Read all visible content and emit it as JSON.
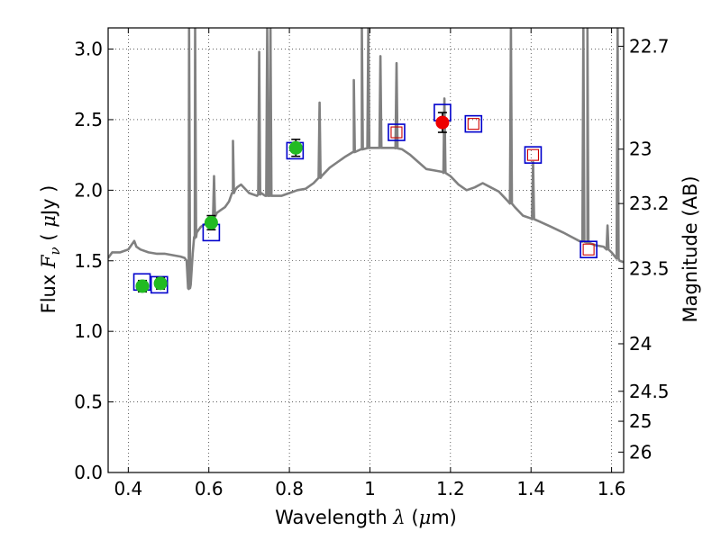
{
  "chart_data": {
    "type": "scatter",
    "xlabel": {
      "text": "Wavelength",
      "symbol": "λ",
      "open": " (",
      "unit_mu": "μ",
      "unit_rest": "m)"
    },
    "ylabel": {
      "text": "Flux",
      "symbol": "F",
      "subscript": "ν",
      "open": " ( ",
      "unit_mu": "μ",
      "unit_rest": "Jy )"
    },
    "y2label": "Magnitude (AB)",
    "xlim": [
      0.35,
      1.63
    ],
    "ylim": [
      0.0,
      3.15
    ],
    "grid": true,
    "x_ticks": [
      {
        "value": 0.4,
        "label": "0.4"
      },
      {
        "value": 0.6,
        "label": "0.6"
      },
      {
        "value": 0.8,
        "label": "0.8"
      },
      {
        "value": 1.0,
        "label": "1"
      },
      {
        "value": 1.2,
        "label": "1.2"
      },
      {
        "value": 1.4,
        "label": "1.4"
      },
      {
        "value": 1.6,
        "label": "1.6"
      }
    ],
    "y_ticks": [
      {
        "value": 0.0,
        "label": "0.0"
      },
      {
        "value": 0.5,
        "label": "0.5"
      },
      {
        "value": 1.0,
        "label": "1.0"
      },
      {
        "value": 1.5,
        "label": "1.5"
      },
      {
        "value": 2.0,
        "label": "2.0"
      },
      {
        "value": 2.5,
        "label": "2.5"
      },
      {
        "value": 3.0,
        "label": "3.0"
      }
    ],
    "y2_ticks": [
      {
        "mag": 22.7,
        "label": "22.7"
      },
      {
        "mag": 23.0,
        "label": "23"
      },
      {
        "mag": 23.2,
        "label": "23.2"
      },
      {
        "mag": 23.5,
        "label": "23.5"
      },
      {
        "mag": 24.0,
        "label": "24"
      },
      {
        "mag": 24.5,
        "label": "24.5"
      },
      {
        "mag": 25.0,
        "label": "25"
      },
      {
        "mag": 26.0,
        "label": "26"
      }
    ],
    "sed_model": {
      "color": "#808080",
      "x": [
        0.35,
        0.36,
        0.38,
        0.4,
        0.41,
        0.415,
        0.42,
        0.43,
        0.45,
        0.47,
        0.49,
        0.51,
        0.53,
        0.54,
        0.545,
        0.55,
        0.555,
        0.56,
        0.565,
        0.57,
        0.575,
        0.58,
        0.59,
        0.6,
        0.61,
        0.62,
        0.63,
        0.64,
        0.65,
        0.66,
        0.665,
        0.67,
        0.68,
        0.7,
        0.72,
        0.73,
        0.74,
        0.76,
        0.78,
        0.8,
        0.82,
        0.84,
        0.86,
        0.88,
        0.9,
        0.92,
        0.94,
        0.96,
        0.98,
        1.0,
        1.02,
        1.04,
        1.06,
        1.08,
        1.1,
        1.12,
        1.14,
        1.16,
        1.18,
        1.2,
        1.22,
        1.24,
        1.26,
        1.28,
        1.3,
        1.32,
        1.34,
        1.36,
        1.38,
        1.4,
        1.42,
        1.45,
        1.48,
        1.5,
        1.52,
        1.54,
        1.55,
        1.56,
        1.58,
        1.6,
        1.62,
        1.63
      ],
      "y": [
        1.52,
        1.56,
        1.56,
        1.58,
        1.62,
        1.64,
        1.6,
        1.58,
        1.56,
        1.55,
        1.55,
        1.54,
        1.53,
        1.52,
        1.5,
        1.3,
        1.33,
        1.55,
        1.66,
        1.7,
        1.72,
        1.74,
        1.76,
        1.78,
        1.8,
        1.84,
        1.86,
        1.88,
        1.92,
        1.98,
        2.0,
        2.02,
        2.04,
        1.98,
        1.96,
        1.98,
        1.96,
        1.96,
        1.96,
        1.98,
        2.0,
        2.01,
        2.05,
        2.1,
        2.16,
        2.2,
        2.24,
        2.27,
        2.29,
        2.3,
        2.3,
        2.3,
        2.3,
        2.29,
        2.25,
        2.2,
        2.15,
        2.14,
        2.13,
        2.1,
        2.04,
        2.0,
        2.02,
        2.05,
        2.02,
        1.99,
        1.93,
        1.88,
        1.82,
        1.8,
        1.78,
        1.74,
        1.7,
        1.67,
        1.64,
        1.63,
        1.62,
        1.61,
        1.6,
        1.56,
        1.5,
        1.49
      ],
      "lines": [
        {
          "x": 0.551,
          "peak": 3.15
        },
        {
          "x": 0.566,
          "peak": 3.15
        },
        {
          "x": 0.613,
          "peak": 2.1
        },
        {
          "x": 0.66,
          "peak": 2.35
        },
        {
          "x": 0.725,
          "peak": 2.98
        },
        {
          "x": 0.745,
          "peak": 3.15
        },
        {
          "x": 0.753,
          "peak": 3.15
        },
        {
          "x": 0.875,
          "peak": 2.62
        },
        {
          "x": 0.96,
          "peak": 2.78
        },
        {
          "x": 0.98,
          "peak": 3.15
        },
        {
          "x": 0.996,
          "peak": 3.15
        },
        {
          "x": 1.026,
          "peak": 2.95
        },
        {
          "x": 1.066,
          "peak": 2.9
        },
        {
          "x": 1.185,
          "peak": 2.65
        },
        {
          "x": 1.35,
          "peak": 3.15
        },
        {
          "x": 1.405,
          "peak": 2.2
        },
        {
          "x": 1.53,
          "peak": 3.15
        },
        {
          "x": 1.54,
          "peak": 3.15
        },
        {
          "x": 1.59,
          "peak": 1.75
        },
        {
          "x": 1.615,
          "peak": 3.15
        }
      ]
    },
    "model_photometry": [
      {
        "x": 0.434,
        "y": 1.35,
        "color": "#0000cc",
        "inner": ""
      },
      {
        "x": 0.477,
        "y": 1.33,
        "color": "#0000cc",
        "inner": ""
      },
      {
        "x": 0.606,
        "y": 1.7,
        "color": "#0000cc",
        "inner": ""
      },
      {
        "x": 0.814,
        "y": 2.28,
        "color": "#0000cc",
        "inner": ""
      },
      {
        "x": 1.066,
        "y": 2.41,
        "color": "#0000cc",
        "inner": "#cc0000"
      },
      {
        "x": 1.18,
        "y": 2.55,
        "color": "#0000cc",
        "inner": ""
      },
      {
        "x": 1.257,
        "y": 2.47,
        "color": "#0000cc",
        "inner": "#cc0000"
      },
      {
        "x": 1.405,
        "y": 2.25,
        "color": "#0000cc",
        "inner": "#cc0000"
      },
      {
        "x": 1.543,
        "y": 1.58,
        "color": "#0000cc",
        "inner": "#cc0000"
      }
    ],
    "observed": [
      {
        "x": 0.435,
        "y": 1.32,
        "err": 0.04,
        "color": "#22bb22"
      },
      {
        "x": 0.48,
        "y": 1.34,
        "err": 0.04,
        "color": "#22bb22"
      },
      {
        "x": 0.606,
        "y": 1.77,
        "err": 0.05,
        "color": "#22bb22"
      },
      {
        "x": 0.816,
        "y": 2.3,
        "err": 0.06,
        "color": "#22bb22"
      },
      {
        "x": 1.18,
        "y": 2.48,
        "err": 0.07,
        "color": "#ee0000"
      }
    ]
  }
}
